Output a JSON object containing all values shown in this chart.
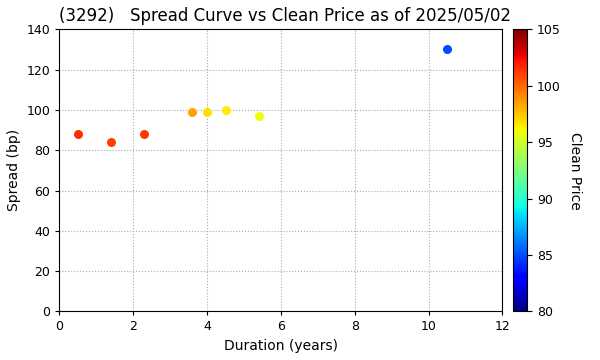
{
  "title": "(3292)   Spread Curve vs Clean Price as of 2025/05/02",
  "xlabel": "Duration (years)",
  "ylabel": "Spread (bp)",
  "colorbar_label": "Clean Price",
  "xlim": [
    0,
    12
  ],
  "ylim": [
    0,
    140
  ],
  "xticks": [
    0,
    2,
    4,
    6,
    8,
    10,
    12
  ],
  "yticks": [
    0,
    20,
    40,
    60,
    80,
    100,
    120,
    140
  ],
  "cbar_min": 80,
  "cbar_max": 105,
  "cbar_ticks": [
    80,
    85,
    90,
    95,
    100,
    105
  ],
  "points": [
    {
      "duration": 0.5,
      "spread": 88,
      "price": 101.5
    },
    {
      "duration": 1.4,
      "spread": 84,
      "price": 101.0
    },
    {
      "duration": 2.3,
      "spread": 88,
      "price": 101.2
    },
    {
      "duration": 3.6,
      "spread": 99,
      "price": 98.5
    },
    {
      "duration": 4.0,
      "spread": 99,
      "price": 96.8
    },
    {
      "duration": 4.5,
      "spread": 100,
      "price": 96.5
    },
    {
      "duration": 5.4,
      "spread": 97,
      "price": 96.0
    },
    {
      "duration": 10.5,
      "spread": 130,
      "price": 85.0
    }
  ],
  "marker_size": 30,
  "background_color": "#ffffff",
  "grid_color": "#aaaaaa",
  "title_fontsize": 12,
  "axis_fontsize": 10
}
